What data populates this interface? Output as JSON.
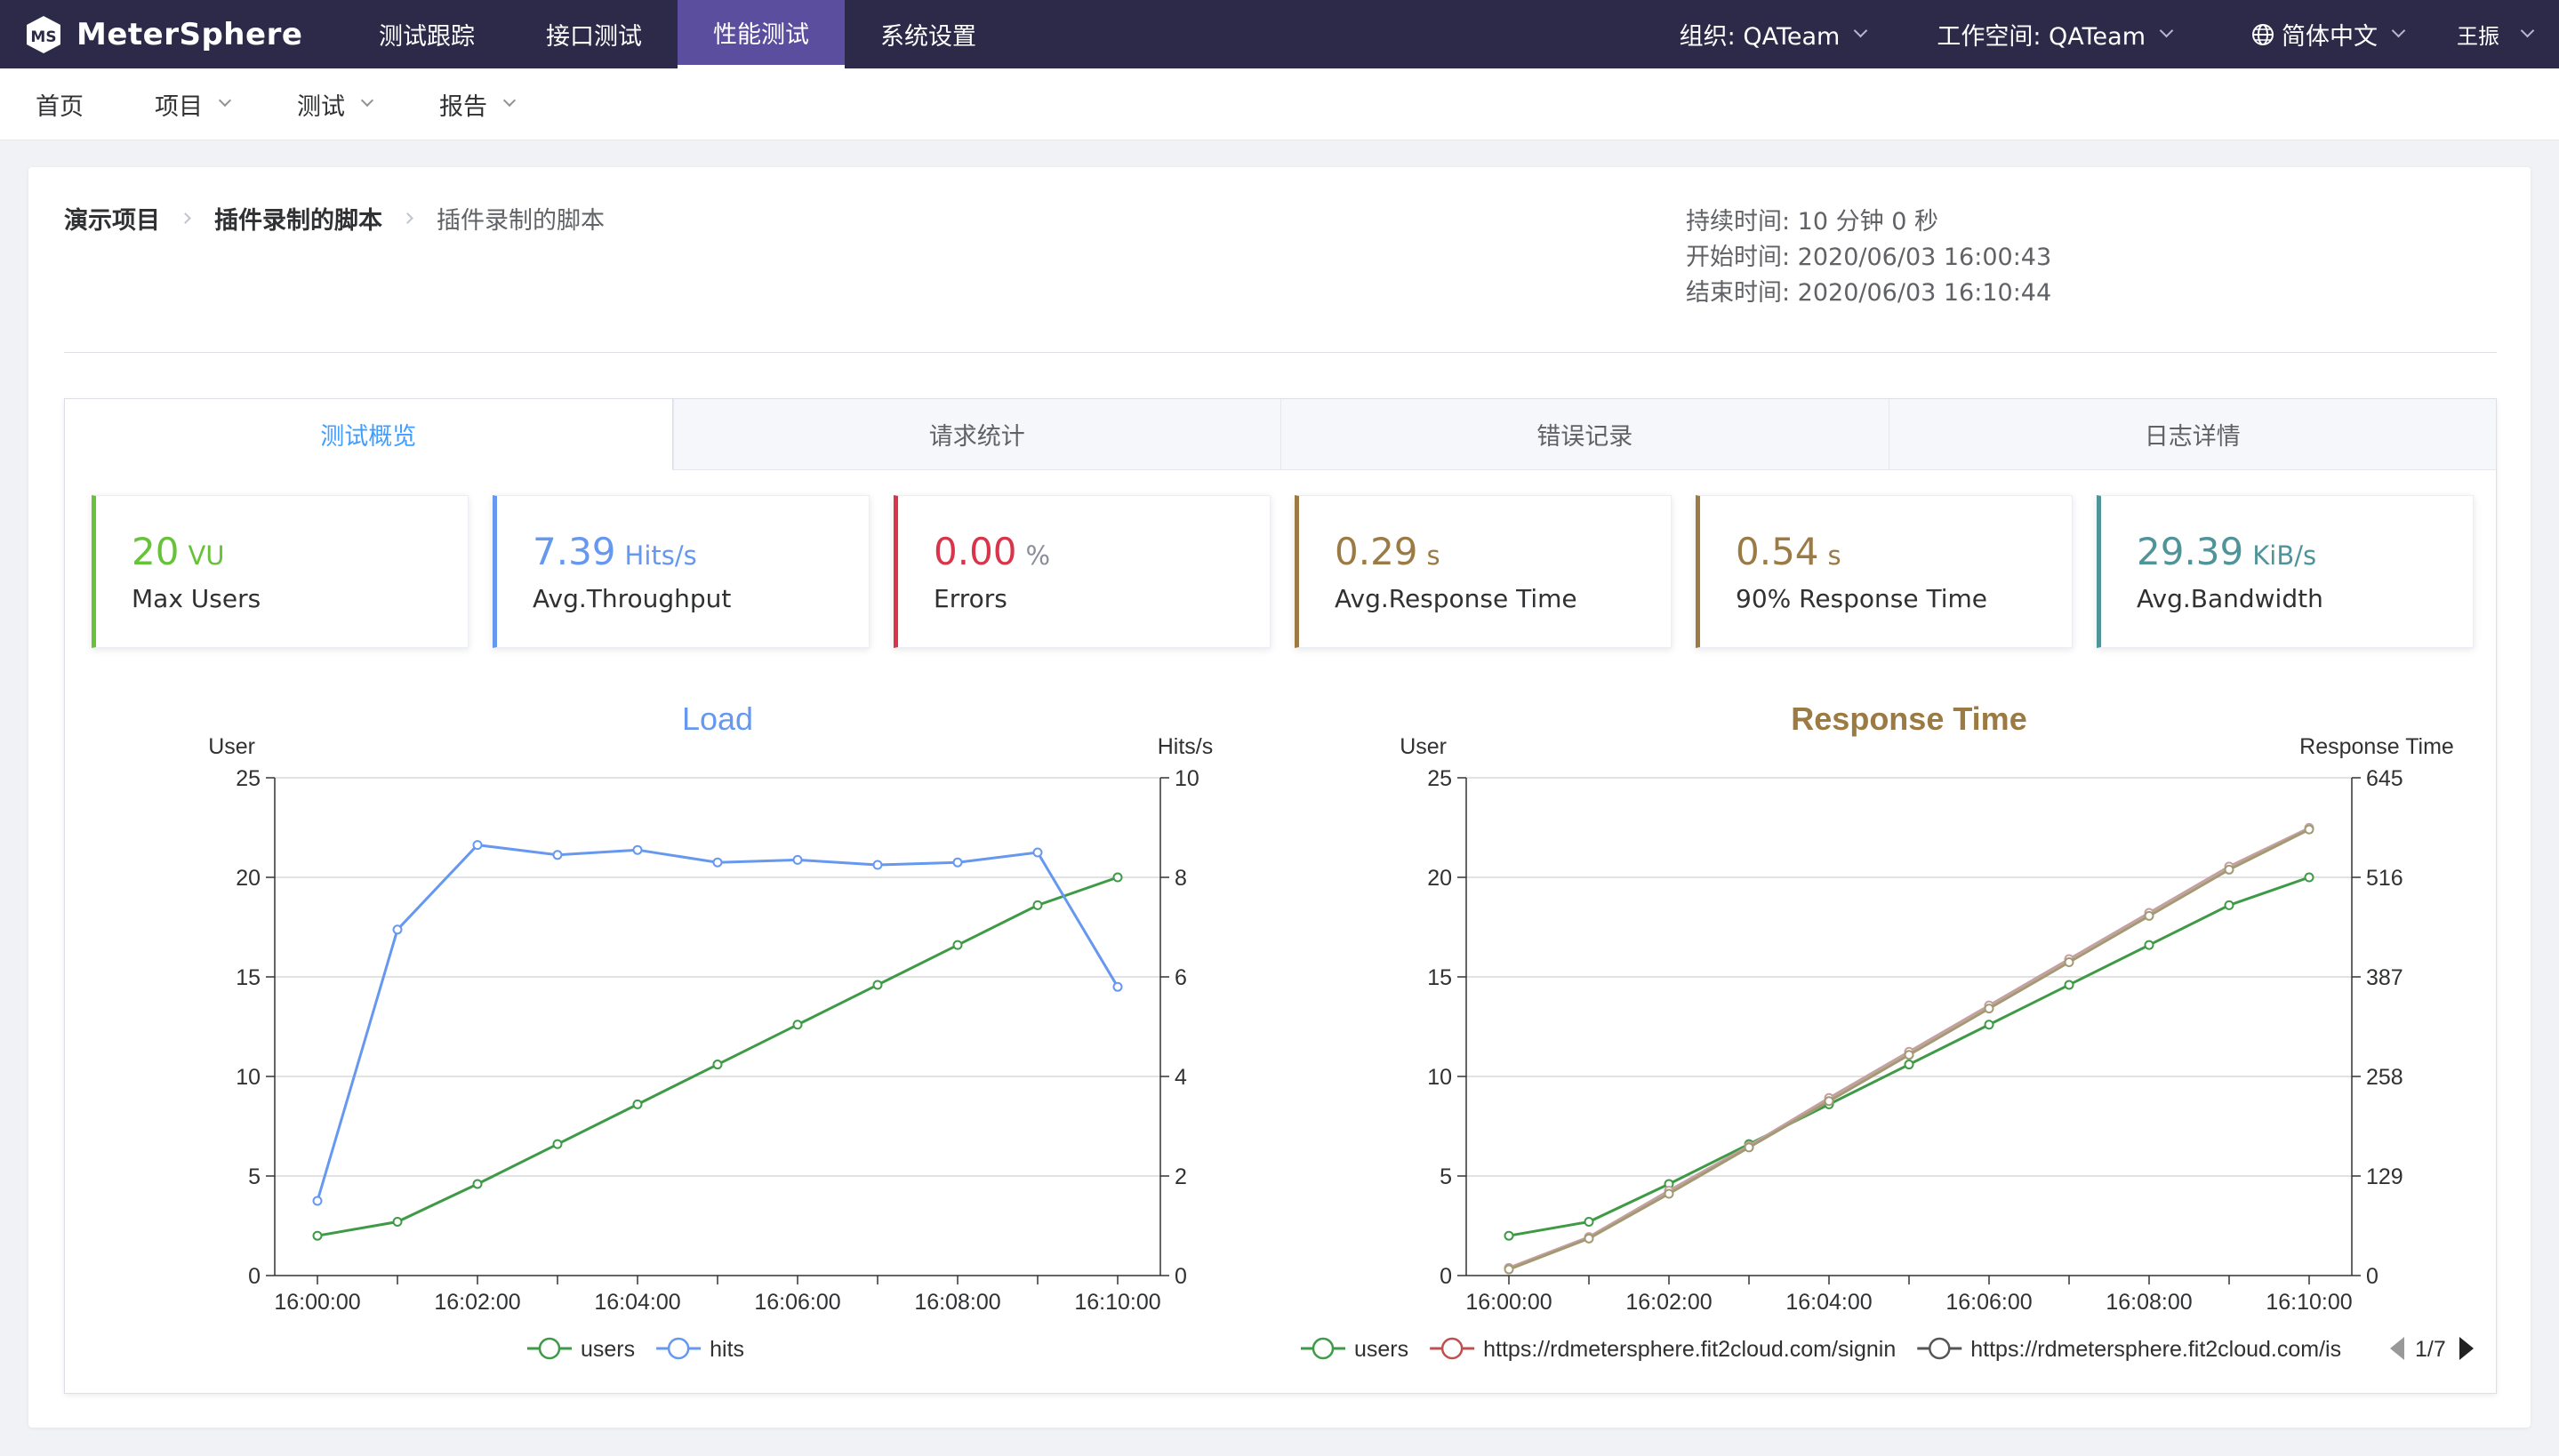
{
  "topbar": {
    "logo_text": "MeterSphere",
    "menu": [
      {
        "label": "测试跟踪",
        "active": false
      },
      {
        "label": "接口测试",
        "active": false
      },
      {
        "label": "性能测试",
        "active": true
      },
      {
        "label": "系统设置",
        "active": false
      }
    ],
    "org": "组织: QATeam",
    "workspace": "工作空间: QATeam",
    "language": "简体中文",
    "user": "王振"
  },
  "subnav": {
    "items": [
      {
        "label": "首页",
        "dropdown": false
      },
      {
        "label": "项目",
        "dropdown": true
      },
      {
        "label": "测试",
        "dropdown": true
      },
      {
        "label": "报告",
        "dropdown": true
      }
    ]
  },
  "breadcrumb": [
    "演示项目",
    "插件录制的脚本",
    "插件录制的脚本"
  ],
  "report_times": {
    "duration": "持续时间:  10 分钟 0 秒",
    "start": "开始时间:  2020/06/03 16:00:43",
    "end": "结束时间:  2020/06/03 16:10:44"
  },
  "tabs": [
    {
      "label": "测试概览",
      "active": true
    },
    {
      "label": "请求统计",
      "active": false
    },
    {
      "label": "错误记录",
      "active": false
    },
    {
      "label": "日志详情",
      "active": false
    }
  ],
  "metrics": [
    {
      "value": "20",
      "unit": "VU",
      "label": "Max Users",
      "color": "#67c23a"
    },
    {
      "value": "7.39",
      "unit": "Hits/s",
      "label": "Avg.Throughput",
      "color": "#6698f0"
    },
    {
      "value": "0.00",
      "unit": "%",
      "label": "Errors",
      "color": "#d9344a"
    },
    {
      "value": "0.29",
      "unit": "s",
      "label": "Avg.Response Time",
      "color": "#9b7a44"
    },
    {
      "value": "0.54",
      "unit": "s",
      "label": "90% Response Time",
      "color": "#9b7a44"
    },
    {
      "value": "29.39",
      "unit": "KiB/s",
      "label": "Avg.Bandwidth",
      "color": "#4f9499"
    }
  ],
  "chart_data": [
    {
      "type": "line",
      "title": "Load",
      "title_color": "#6698f0",
      "ylabel_left": "User",
      "ylabel_right": "Hits/s",
      "ylim_left": [
        0,
        25
      ],
      "yticks_left": [
        0,
        5,
        10,
        15,
        20,
        25
      ],
      "ylim_right": [
        0,
        10
      ],
      "yticks_right": [
        0,
        2,
        4,
        6,
        8,
        10
      ],
      "x": [
        "16:00:00",
        "16:01:00",
        "16:02:00",
        "16:03:00",
        "16:04:00",
        "16:05:00",
        "16:06:00",
        "16:07:00",
        "16:08:00",
        "16:09:00",
        "16:10:00"
      ],
      "x_tick_labels": [
        "16:00:00",
        "16:02:00",
        "16:04:00",
        "16:06:00",
        "16:08:00",
        "16:10:00"
      ],
      "grid": true,
      "legend_position": "bottom",
      "series": [
        {
          "name": "users",
          "axis": "left",
          "color": "#3e9a46",
          "values": [
            2,
            2.7,
            4.6,
            6.6,
            8.6,
            10.6,
            12.6,
            14.6,
            16.6,
            18.6,
            20
          ]
        },
        {
          "name": "hits",
          "axis": "right",
          "color": "#6698f0",
          "values": [
            1.5,
            6.95,
            8.65,
            8.45,
            8.55,
            8.3,
            8.35,
            8.25,
            8.3,
            8.5,
            5.8
          ]
        }
      ],
      "pager": ""
    },
    {
      "type": "line",
      "title": "Response Time",
      "title_color": "#9b7a44",
      "ylabel_left": "User",
      "ylabel_right": "Response Time",
      "ylim_left": [
        0,
        25
      ],
      "yticks_left": [
        0,
        5,
        10,
        15,
        20,
        25
      ],
      "ylim_right": [
        0,
        645
      ],
      "yticks_right": [
        0,
        129,
        258,
        387,
        516,
        645
      ],
      "x": [
        "16:00:00",
        "16:01:00",
        "16:02:00",
        "16:03:00",
        "16:04:00",
        "16:05:00",
        "16:06:00",
        "16:07:00",
        "16:08:00",
        "16:09:00",
        "16:10:00"
      ],
      "x_tick_labels": [
        "16:00:00",
        "16:02:00",
        "16:04:00",
        "16:06:00",
        "16:08:00",
        "16:10:00"
      ],
      "grid": true,
      "legend_position": "bottom",
      "series": [
        {
          "name": "users",
          "axis": "left",
          "color": "#3e9a46",
          "values": [
            2,
            2.7,
            4.6,
            6.6,
            8.6,
            10.6,
            12.6,
            14.6,
            16.6,
            18.6,
            20
          ]
        },
        {
          "name": "https://rdmetersphere.fit2cloud.com/signin",
          "axis": "right",
          "color": "#c4a0a0",
          "values": [
            10,
            50,
            110,
            168,
            230,
            290,
            350,
            410,
            470,
            530,
            580
          ]
        },
        {
          "name": "https://rdmetersphere.fit2cloud.com/is",
          "axis": "right",
          "color": "#a39a74",
          "values": [
            8,
            48,
            106,
            166,
            226,
            286,
            346,
            406,
            466,
            526,
            578
          ]
        }
      ],
      "pager": "1/7"
    }
  ]
}
